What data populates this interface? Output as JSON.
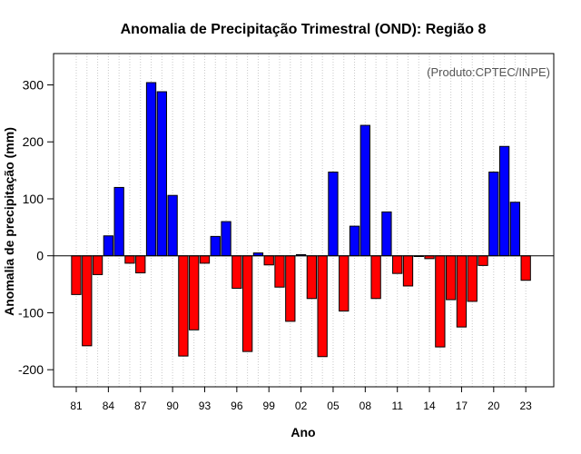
{
  "chart_data": {
    "type": "bar",
    "title": "Anomalia de Precipitação Trimestral (OND): Região 8",
    "xlabel": "Ano",
    "ylabel": "Anomalia de precipitação (mm)",
    "annotation": "(Produto:CPTEC/INPE)",
    "ylim": [
      -230,
      355
    ],
    "yticks": [
      -200,
      -100,
      0,
      100,
      200,
      300
    ],
    "grid": "vertical-dotted",
    "positive_color": "#0000ff",
    "negative_color": "#ff0000",
    "categories": [
      "1981",
      "1982",
      "1983",
      "1984",
      "1985",
      "1986",
      "1987",
      "1988",
      "1989",
      "1990",
      "1991",
      "1992",
      "1993",
      "1994",
      "1995",
      "1996",
      "1997",
      "1998",
      "1999",
      "2000",
      "2001",
      "2002",
      "2003",
      "2004",
      "2005",
      "2006",
      "2007",
      "2008",
      "2009",
      "2010",
      "2011",
      "2012",
      "2013",
      "2014",
      "2015",
      "2016",
      "2017",
      "2018",
      "2019",
      "2020",
      "2021",
      "2022",
      "2023"
    ],
    "xtick_labels": [
      {
        "index": 0,
        "label": "81"
      },
      {
        "index": 3,
        "label": "84"
      },
      {
        "index": 6,
        "label": "87"
      },
      {
        "index": 9,
        "label": "90"
      },
      {
        "index": 12,
        "label": "93"
      },
      {
        "index": 15,
        "label": "96"
      },
      {
        "index": 18,
        "label": "99"
      },
      {
        "index": 21,
        "label": "02"
      },
      {
        "index": 24,
        "label": "05"
      },
      {
        "index": 27,
        "label": "08"
      },
      {
        "index": 30,
        "label": "11"
      },
      {
        "index": 33,
        "label": "14"
      },
      {
        "index": 36,
        "label": "17"
      },
      {
        "index": 39,
        "label": "20"
      },
      {
        "index": 42,
        "label": "23"
      }
    ],
    "values": [
      -68,
      -158,
      -33,
      35,
      120,
      -13,
      -30,
      304,
      288,
      106,
      -176,
      -130,
      -13,
      34,
      60,
      -57,
      -168,
      5,
      -16,
      -55,
      -115,
      2,
      -75,
      -177,
      147,
      -97,
      52,
      229,
      -75,
      77,
      -31,
      -53,
      0,
      -5,
      -160,
      -77,
      -125,
      -80,
      -17,
      147,
      192,
      94,
      -43
    ]
  }
}
